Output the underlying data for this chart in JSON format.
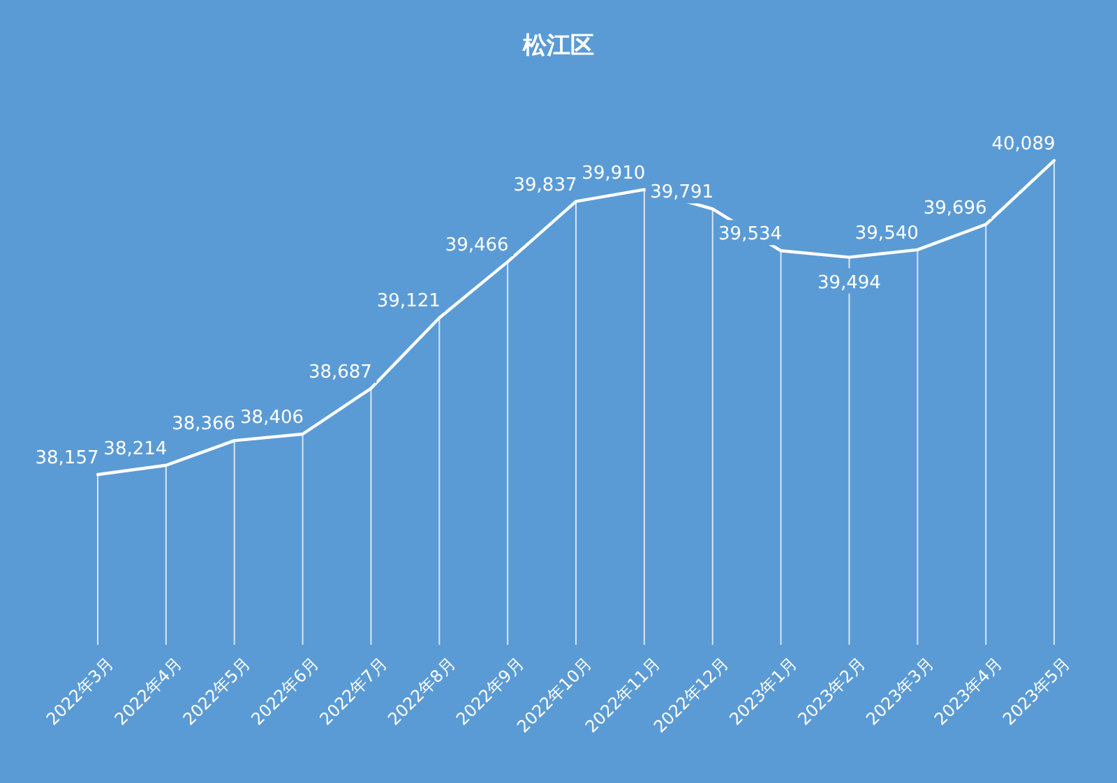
{
  "chart_data": {
    "type": "line",
    "title": "松江区",
    "categories": [
      "2022年3月",
      "2022年4月",
      "2022年5月",
      "2022年6月",
      "2022年7月",
      "2022年8月",
      "2022年9月",
      "2022年10月",
      "2022年11月",
      "2022年12月",
      "2023年1月",
      "2023年2月",
      "2023年3月",
      "2023年4月",
      "2023年5月"
    ],
    "values": [
      38157,
      38214,
      38366,
      38406,
      38687,
      39121,
      39466,
      39837,
      39910,
      39791,
      39534,
      39494,
      39540,
      39696,
      40089
    ],
    "value_labels": [
      "38,157",
      "38,214",
      "38,366",
      "38,406",
      "38,687",
      "39,121",
      "39,466",
      "39,837",
      "39,910",
      "39,791",
      "39,534",
      "39,494",
      "39,540",
      "39,696",
      "40,089"
    ],
    "color": "#ffffff",
    "marker": "none",
    "line_style": "solid",
    "grid": "x"
  }
}
